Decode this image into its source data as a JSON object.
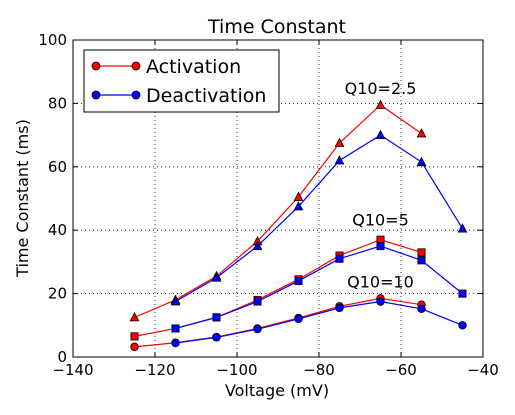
{
  "chart_data": {
    "type": "line",
    "title": "Time Constant",
    "xlabel": "Voltage (mV)",
    "ylabel": "Time Constant (ms)",
    "xlim": [
      -140,
      -40
    ],
    "ylim": [
      0,
      100
    ],
    "xticks": [
      -140,
      -120,
      -100,
      -80,
      -60,
      -40
    ],
    "yticks": [
      0,
      20,
      40,
      60,
      80,
      100
    ],
    "grid": true,
    "legend": {
      "placement": "top-left",
      "entries": [
        {
          "label": "Activation",
          "color": "#ff0000",
          "marker": "circle"
        },
        {
          "label": "Deactivation",
          "color": "#0000ff",
          "marker": "circle"
        }
      ]
    },
    "series": [
      {
        "kind": "activation",
        "color": "#ff0000",
        "marker": "triangle",
        "x": [
          -125,
          -115,
          -105,
          -95,
          -85,
          -75,
          -65,
          -55
        ],
        "y": [
          12.5,
          18,
          25.5,
          36.5,
          50.5,
          67.5,
          79.5,
          70.5
        ]
      },
      {
        "kind": "deactivation",
        "color": "#0000ff",
        "marker": "triangle",
        "x": [
          -115,
          -105,
          -95,
          -85,
          -75,
          -65,
          -55,
          -45
        ],
        "y": [
          17.5,
          25,
          35,
          47.5,
          62,
          70,
          61.5,
          40.5
        ]
      },
      {
        "kind": "activation",
        "color": "#ff0000",
        "marker": "square",
        "x": [
          -125,
          -115,
          -105,
          -95,
          -85,
          -75,
          -65,
          -55
        ],
        "y": [
          6.5,
          9,
          12.5,
          18,
          24.5,
          32,
          37,
          33
        ]
      },
      {
        "kind": "deactivation",
        "color": "#0000ff",
        "marker": "square",
        "x": [
          -115,
          -105,
          -95,
          -85,
          -75,
          -65,
          -55,
          -45
        ],
        "y": [
          9,
          12.5,
          17.5,
          24,
          31,
          35,
          30.5,
          20
        ]
      },
      {
        "kind": "activation",
        "color": "#ff0000",
        "marker": "circle",
        "x": [
          -125,
          -115,
          -105,
          -95,
          -85,
          -75,
          -65,
          -55
        ],
        "y": [
          3.2,
          4.5,
          6.3,
          9,
          12.3,
          16,
          18.5,
          16.5
        ]
      },
      {
        "kind": "deactivation",
        "color": "#0000ff",
        "marker": "circle",
        "x": [
          -115,
          -105,
          -95,
          -85,
          -75,
          -65,
          -55,
          -45
        ],
        "y": [
          4.4,
          6.2,
          8.8,
          12,
          15.5,
          17.5,
          15.2,
          10
        ]
      }
    ],
    "annotations": [
      {
        "text": "Q10=2.5",
        "x": -65,
        "y": 83
      },
      {
        "text": "Q10=5",
        "x": -65,
        "y": 41.5
      },
      {
        "text": "Q10=10",
        "x": -65,
        "y": 22
      }
    ]
  }
}
